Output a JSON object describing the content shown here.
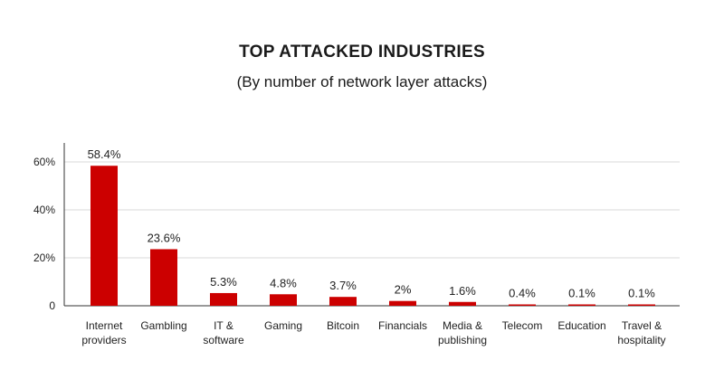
{
  "chart_data": {
    "type": "bar",
    "title": "TOP ATTACKED INDUSTRIES",
    "subtitle": "(By number of network layer attacks)",
    "categories": [
      [
        "Internet",
        "providers"
      ],
      [
        "Gambling"
      ],
      [
        "IT &",
        "software"
      ],
      [
        "Gaming"
      ],
      [
        "Bitcoin"
      ],
      [
        "Financials"
      ],
      [
        "Media &",
        "publishing"
      ],
      [
        "Telecom"
      ],
      [
        "Education"
      ],
      [
        "Travel &",
        "hospitality"
      ]
    ],
    "values": [
      58.4,
      23.6,
      5.3,
      4.8,
      3.7,
      2,
      1.6,
      0.4,
      0.1,
      0.1
    ],
    "data_labels": [
      "58.4%",
      "23.6%",
      "5.3%",
      "4.8%",
      "3.7%",
      "2%",
      "1.6%",
      "0.4%",
      "0.1%",
      "0.1%"
    ],
    "y_ticks": [
      0,
      20,
      40,
      60
    ],
    "y_tick_labels": [
      "0",
      "20%",
      "40%",
      "60%"
    ],
    "ylim": [
      0,
      68
    ],
    "grid": true,
    "bar_color": "#cc0000"
  }
}
